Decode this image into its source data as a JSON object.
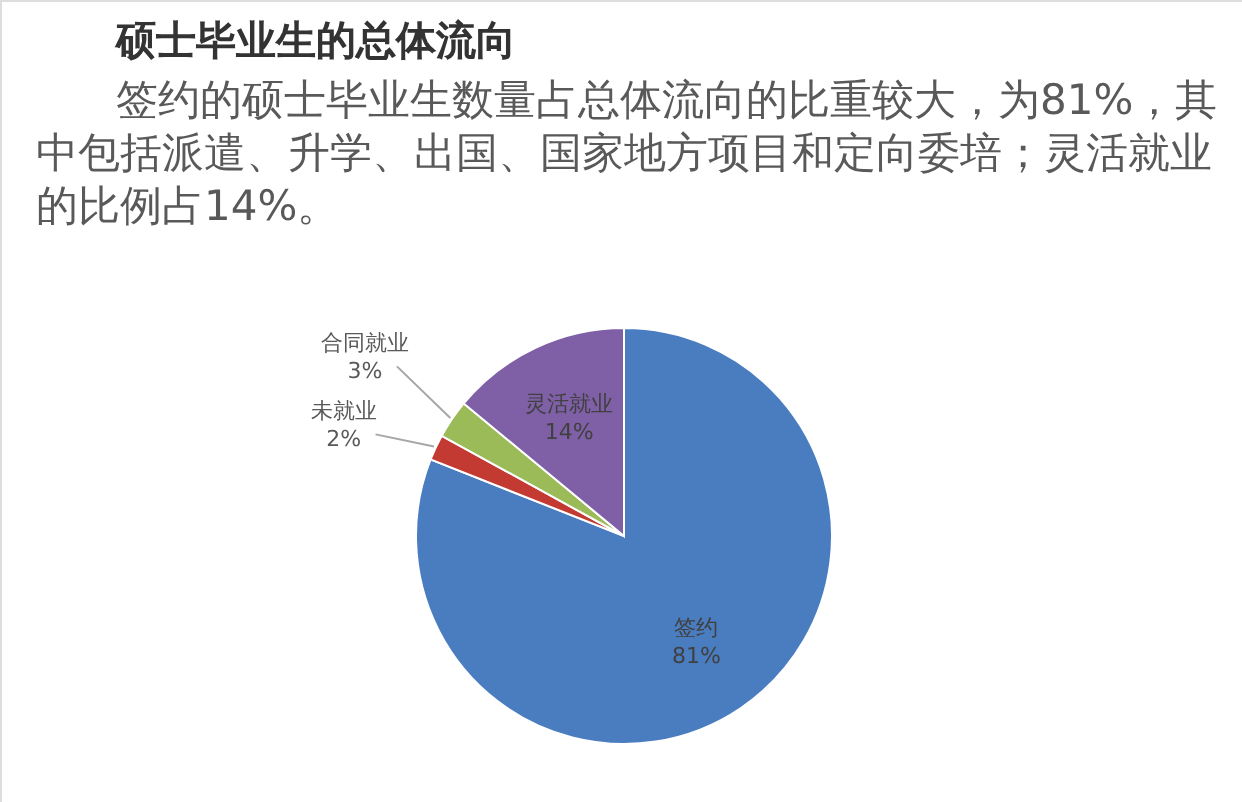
{
  "chart_data": {
    "type": "pie",
    "title": "硕士毕业生的总体流向",
    "subtitle": "签约的硕士毕业生数量占总体流向的比重较大，为81%，其中包括派遣、升学、出国、国家地方项目和定向委培；灵活就业的比例占14%。",
    "categories": [
      "签约",
      "未就业",
      "合同就业",
      "灵活就业"
    ],
    "values": [
      81,
      2,
      3,
      14
    ],
    "colors": [
      "#4a7cc0",
      "#c33a32",
      "#9bbb59",
      "#7f5fa6"
    ],
    "value_labels": [
      "81%",
      "2%",
      "3%",
      "14%"
    ]
  }
}
